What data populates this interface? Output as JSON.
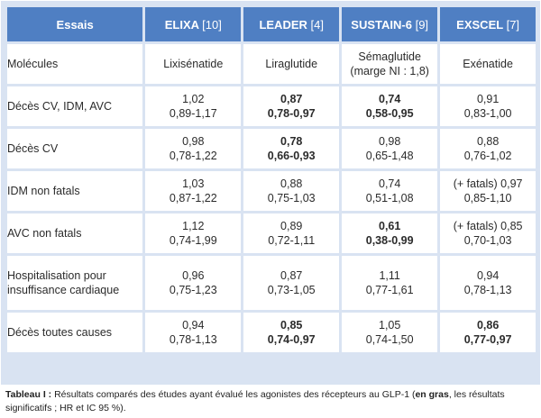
{
  "table": {
    "header": {
      "label": "Essais",
      "trials": [
        {
          "name": "ELIXA",
          "ref": "[10]"
        },
        {
          "name": "LEADER",
          "ref": "[4]"
        },
        {
          "name": "SUSTAIN-6",
          "ref": "[9]"
        },
        {
          "name": "EXSCEL",
          "ref": "[7]"
        }
      ]
    },
    "rows": [
      {
        "label": "Molécules",
        "cells": [
          {
            "l1": "Lixisénatide",
            "l2": "",
            "bold": false
          },
          {
            "l1": "Liraglutide",
            "l2": "",
            "bold": false
          },
          {
            "l1": "Sémaglutide",
            "l2": "(marge NI : 1,8)",
            "bold": false
          },
          {
            "l1": "Exénatide",
            "l2": "",
            "bold": false
          }
        ]
      },
      {
        "label": "Décès CV, IDM, AVC",
        "cells": [
          {
            "l1": "1,02",
            "l2": "0,89-1,17",
            "bold": false
          },
          {
            "l1": "0,87",
            "l2": "0,78-0,97",
            "bold": true
          },
          {
            "l1": "0,74",
            "l2": "0,58-0,95",
            "bold": true
          },
          {
            "l1": "0,91",
            "l2": "0,83-1,00",
            "bold": false
          }
        ]
      },
      {
        "label": "Décès CV",
        "cells": [
          {
            "l1": "0,98",
            "l2": "0,78-1,22",
            "bold": false
          },
          {
            "l1": "0,78",
            "l2": "0,66-0,93",
            "bold": true
          },
          {
            "l1": "0,98",
            "l2": "0,65-1,48",
            "bold": false
          },
          {
            "l1": "0,88",
            "l2": "0,76-1,02",
            "bold": false
          }
        ]
      },
      {
        "label": "IDM non fatals",
        "cells": [
          {
            "l1": "1,03",
            "l2": "0,87-1,22",
            "bold": false
          },
          {
            "l1": "0,88",
            "l2": "0,75-1,03",
            "bold": false
          },
          {
            "l1": "0,74",
            "l2": "0,51-1,08",
            "bold": false
          },
          {
            "l1": "(+ fatals) 0,97",
            "l2": "0,85-1,10",
            "bold": false
          }
        ]
      },
      {
        "label": "AVC non fatals",
        "cells": [
          {
            "l1": "1,12",
            "l2": "0,74-1,99",
            "bold": false
          },
          {
            "l1": "0,89",
            "l2": "0,72-1,11",
            "bold": false
          },
          {
            "l1": "0,61",
            "l2": "0,38-0,99",
            "bold": true
          },
          {
            "l1": "(+ fatals) 0,85",
            "l2": "0,70-1,03",
            "bold": false
          }
        ]
      },
      {
        "label": "Hospitalisation pour insuffisance cardiaque",
        "cells": [
          {
            "l1": "0,96",
            "l2": "0,75-1,23",
            "bold": false
          },
          {
            "l1": "0,87",
            "l2": "0,73-1,05",
            "bold": false
          },
          {
            "l1": "1,11",
            "l2": "0,77-1,61",
            "bold": false
          },
          {
            "l1": "0,94",
            "l2": "0,78-1,13",
            "bold": false
          }
        ]
      },
      {
        "label": "Décès toutes causes",
        "cells": [
          {
            "l1": "0,94",
            "l2": "0,78-1,13",
            "bold": false
          },
          {
            "l1": "0,85",
            "l2": "0,74-0,97",
            "bold": true
          },
          {
            "l1": "1,05",
            "l2": "0,74-1,50",
            "bold": false
          },
          {
            "l1": "0,86",
            "l2": "0,77-0,97",
            "bold": true
          }
        ]
      }
    ]
  },
  "caption": {
    "label": "Tableau I :",
    "text1": " Résultats comparés des études ayant évalué les agonistes des récepteurs au GLP-1 (",
    "bold": "en gras",
    "text2": ", les résultats significatifs ; HR et IC 95 %)."
  },
  "colors": {
    "header_bg": "#4f7fc3",
    "frame_bg": "#d9e3f2",
    "cell_bg": "#ffffff"
  }
}
